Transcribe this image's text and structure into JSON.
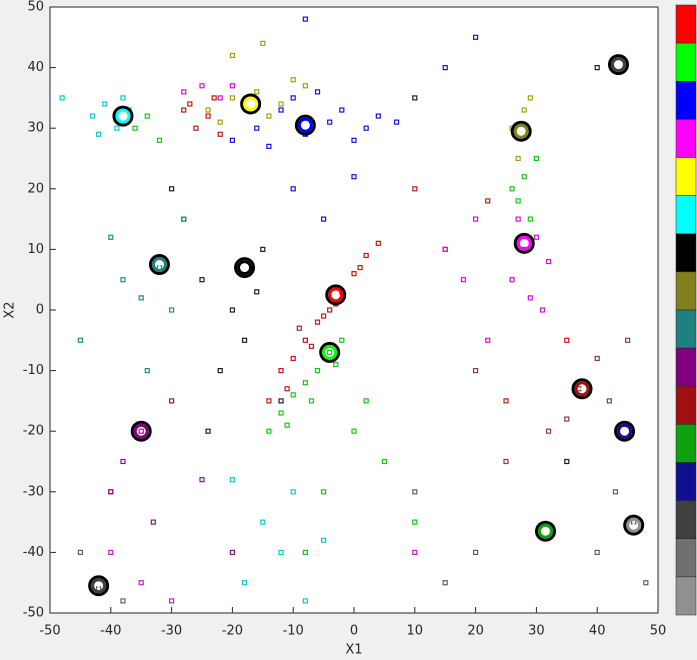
{
  "chart_data": {
    "type": "scatter",
    "xlabel": "X1",
    "ylabel": "X2",
    "xlim": [
      -50,
      50
    ],
    "ylim": [
      -50,
      50
    ],
    "xticks": [
      -50,
      -40,
      -30,
      -20,
      -10,
      0,
      10,
      20,
      30,
      40,
      50
    ],
    "yticks": [
      -50,
      -40,
      -30,
      -20,
      -10,
      0,
      10,
      20,
      30,
      40,
      50
    ],
    "grid": false,
    "colorbar": [
      "#ff0000",
      "#00ff00",
      "#0000ff",
      "#ff00ff",
      "#ffff00",
      "#00ffff",
      "#000000",
      "#808020",
      "#208080",
      "#800080",
      "#a01010",
      "#10a010",
      "#101090",
      "#404040",
      "#707070",
      "#909090"
    ],
    "series": [
      {
        "color": "#c81414",
        "x": [
          -14,
          -12,
          -10,
          -8,
          -6,
          -4,
          -2,
          0,
          2,
          4,
          -11,
          -7,
          -3,
          1,
          -9,
          -5,
          -28,
          -26,
          -24,
          -22,
          -27,
          -23,
          10,
          15,
          -40,
          25,
          35,
          22
        ],
        "y": [
          -15,
          -10,
          -8,
          -5,
          -2,
          0,
          3,
          6,
          9,
          11,
          -13,
          -6,
          1,
          7,
          -3,
          -1,
          33,
          30,
          32,
          29,
          34,
          35,
          20,
          10,
          -30,
          -15,
          -5,
          18
        ]
      },
      {
        "color": "#14c814",
        "x": [
          -14,
          -12,
          -10,
          -8,
          -6,
          -4,
          -2,
          -11,
          -7,
          -3,
          -36,
          -34,
          -32,
          28,
          27,
          30,
          29,
          26,
          0,
          5,
          -5,
          10,
          2,
          -8
        ],
        "y": [
          -20,
          -17,
          -14,
          -12,
          -10,
          -7,
          -5,
          -19,
          -15,
          -9,
          30,
          32,
          28,
          22,
          18,
          25,
          15,
          20,
          -20,
          -25,
          -30,
          -35,
          -15,
          -40
        ]
      },
      {
        "color": "#1414dc",
        "x": [
          -16,
          -12,
          -8,
          -4,
          0,
          4,
          7,
          -14,
          -10,
          -6,
          -2,
          2,
          -10,
          -5,
          0,
          -20,
          15,
          20,
          -8
        ],
        "y": [
          30,
          33,
          29,
          31,
          28,
          32,
          31,
          27,
          35,
          36,
          33,
          30,
          20,
          15,
          22,
          28,
          40,
          45,
          48
        ]
      },
      {
        "color": "#d214d2",
        "x": [
          -28,
          -25,
          -22,
          -20,
          26,
          28,
          30,
          32,
          29,
          27,
          31,
          15,
          18,
          20,
          22,
          10,
          -40,
          -35,
          -30
        ],
        "y": [
          36,
          37,
          35,
          37,
          5,
          10,
          12,
          8,
          2,
          15,
          0,
          10,
          5,
          15,
          -5,
          -40,
          -40,
          -45,
          -48
        ]
      },
      {
        "color": "#a0a014",
        "x": [
          -24,
          -20,
          -16,
          -12,
          -8,
          -22,
          -14,
          -10,
          26,
          28,
          27,
          29,
          -20,
          -15
        ],
        "y": [
          33,
          35,
          36,
          34,
          37,
          31,
          32,
          38,
          30,
          33,
          25,
          35,
          42,
          44
        ]
      },
      {
        "color": "#14c8c8",
        "x": [
          -43,
          -41,
          -39,
          -37,
          -42,
          -38,
          -15,
          -12,
          -18,
          -10,
          -5,
          -8,
          -48,
          -20
        ],
        "y": [
          32,
          34,
          30,
          33,
          29,
          35,
          -35,
          -40,
          -45,
          -30,
          -38,
          -48,
          35,
          -28
        ]
      },
      {
        "color": "#1e1e1e",
        "x": [
          -25,
          -20,
          -18,
          -15,
          -22,
          -28,
          -12,
          -30,
          -24,
          -16,
          10,
          40,
          35
        ],
        "y": [
          5,
          0,
          -5,
          10,
          -10,
          15,
          -15,
          20,
          -20,
          3,
          35,
          40,
          -25
        ]
      },
      {
        "color": "#208c8c",
        "x": [
          -32,
          -35,
          -40,
          -30,
          -28,
          -45,
          -38,
          -34
        ],
        "y": [
          7,
          2,
          12,
          0,
          15,
          -5,
          5,
          -10
        ]
      },
      {
        "color": "#8c148c",
        "x": [
          -35,
          -38,
          -30,
          -40,
          -25,
          -33,
          -20
        ],
        "y": [
          -20,
          -25,
          -15,
          -30,
          -28,
          -35,
          -40
        ]
      },
      {
        "color": "#8c3c3c",
        "x": [
          37,
          35,
          40,
          32,
          42,
          25,
          20,
          45
        ],
        "y": [
          -13,
          -18,
          -8,
          -20,
          -15,
          -25,
          -10,
          -5
        ]
      },
      {
        "color": "#606060",
        "x": [
          -42,
          -45,
          -38,
          46,
          43,
          40,
          48,
          20,
          15,
          10
        ],
        "y": [
          -46,
          -40,
          -48,
          -35,
          -30,
          -40,
          -45,
          -40,
          -45,
          -30
        ]
      }
    ],
    "centroids": {
      "x": [
        -38,
        -17,
        -8,
        27.5,
        28,
        -32,
        -18,
        -3,
        -4,
        -35,
        37.5,
        44.5,
        31.5,
        -42,
        46,
        43.5
      ],
      "y": [
        32,
        34,
        30.5,
        29.5,
        11,
        7.5,
        7,
        2.5,
        -7,
        -20,
        -13,
        -20,
        -36.5,
        -45.5,
        -35.5,
        40.5
      ],
      "colors": [
        "#00ffff",
        "#ffff00",
        "#0000ff",
        "#808020",
        "#ff00ff",
        "#208080",
        "#000000",
        "#ff0000",
        "#00ff00",
        "#800080",
        "#a01010",
        "#101090",
        "#10a010",
        "#404040",
        "#909090",
        "#404040"
      ]
    }
  }
}
